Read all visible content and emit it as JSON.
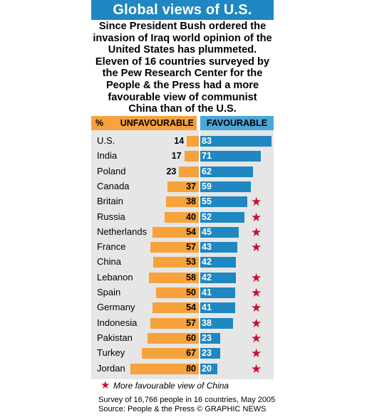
{
  "header": {
    "title": "Global views of U.S.",
    "intro": "Since President Bush ordered the invasion of Iraq world opinion of the United States has plummeted. Eleven of 16 countries surveyed by the Pew Research Center for the People & the Press had a more favourable view of communist China than of the U.S."
  },
  "colors": {
    "unfavourable": "#f7a23b",
    "favourable": "#1f87c1",
    "title_bar": "#1f87c1",
    "star": "#c8102e"
  },
  "chart_data": {
    "type": "bar",
    "orientation": "horizontal-diverging",
    "unit_label": "%",
    "categories": [
      "U.S.",
      "India",
      "Poland",
      "Canada",
      "Britain",
      "Russia",
      "Netherlands",
      "France",
      "China",
      "Lebanon",
      "Spain",
      "Germany",
      "Indonesia",
      "Pakistan",
      "Turkey",
      "Jordan"
    ],
    "series": [
      {
        "name": "UNFAVOURABLE",
        "values": [
          14,
          17,
          23,
          37,
          38,
          40,
          54,
          57,
          53,
          58,
          50,
          54,
          57,
          60,
          67,
          80
        ]
      },
      {
        "name": "FAVOURABLE",
        "values": [
          83,
          71,
          62,
          59,
          55,
          52,
          45,
          43,
          42,
          42,
          41,
          41,
          38,
          23,
          23,
          20
        ]
      }
    ],
    "more_favourable_view_of_china": [
      false,
      false,
      false,
      false,
      true,
      true,
      true,
      true,
      false,
      true,
      true,
      true,
      true,
      true,
      true,
      true
    ]
  },
  "legend": {
    "star_label": "More favourable view of China"
  },
  "footer": {
    "survey": "Survey of 16,766 people in 16 countries, May 2005",
    "source": "Source: People & the Press  © GRAPHIC NEWS"
  }
}
